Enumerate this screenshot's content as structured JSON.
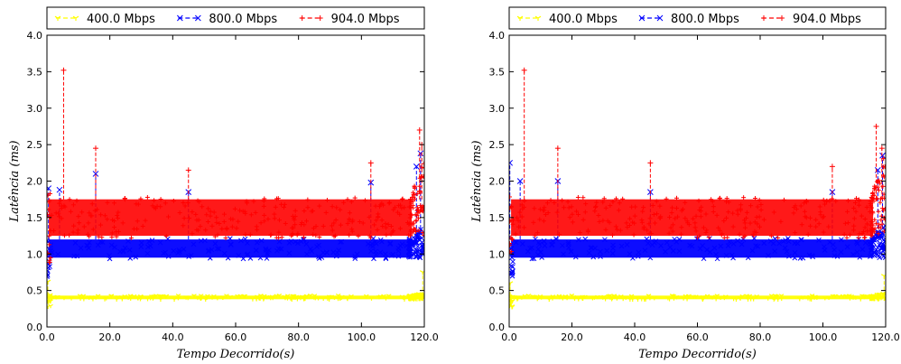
{
  "chart_data": [
    {
      "type": "scatter",
      "xlabel": "Tempo Decorrido(s)",
      "ylabel": "Latência (ms)",
      "xlim": [
        0,
        120
      ],
      "ylim": [
        0,
        4.0
      ],
      "x_ticks": [
        "0.0",
        "20.0",
        "40.0",
        "60.0",
        "80.0",
        "100.0",
        "120.0"
      ],
      "y_ticks": [
        "0.0",
        "0.5",
        "1.0",
        "1.5",
        "2.0",
        "2.5",
        "3.0",
        "3.5",
        "4.0"
      ],
      "legend_position": "top",
      "series": [
        {
          "name": "400.0 Mbps",
          "color": "#ffff00",
          "marker": "y-tick",
          "band": [
            0.38,
            0.43
          ],
          "spikes": [
            [
              0.3,
              0.62
            ],
            [
              119.5,
              0.75
            ]
          ]
        },
        {
          "name": "800.0 Mbps",
          "color": "#0000ff",
          "marker": "x",
          "band": [
            0.95,
            1.2
          ],
          "spikes": [
            [
              0.5,
              1.9
            ],
            [
              4.0,
              1.88
            ],
            [
              15.5,
              2.1
            ],
            [
              45.0,
              1.85
            ],
            [
              103.0,
              1.98
            ],
            [
              117.5,
              2.2
            ],
            [
              118.8,
              2.38
            ]
          ]
        },
        {
          "name": "904.0 Mbps",
          "color": "#ff0000",
          "marker": "plus",
          "band": [
            1.25,
            1.75
          ],
          "spikes": [
            [
              5.3,
              3.52
            ],
            [
              15.5,
              2.45
            ],
            [
              45.0,
              2.15
            ],
            [
              103.0,
              2.25
            ],
            [
              118.5,
              2.7
            ],
            [
              119.2,
              2.5
            ]
          ]
        }
      ]
    },
    {
      "type": "scatter",
      "xlabel": "Tempo Decorrido(s)",
      "ylabel": "Latência (ms)",
      "xlim": [
        0,
        120
      ],
      "ylim": [
        0,
        4.0
      ],
      "x_ticks": [
        "0.0",
        "20.0",
        "40.0",
        "60.0",
        "80.0",
        "100.0",
        "120.0"
      ],
      "y_ticks": [
        "0.0",
        "0.5",
        "1.0",
        "1.5",
        "2.0",
        "2.5",
        "3.0",
        "3.5",
        "4.0"
      ],
      "legend_position": "top",
      "series": [
        {
          "name": "400.0 Mbps",
          "color": "#ffff00",
          "marker": "y-tick",
          "band": [
            0.38,
            0.43
          ],
          "spikes": [
            [
              0.3,
              0.6
            ],
            [
              119.5,
              0.7
            ]
          ]
        },
        {
          "name": "800.0 Mbps",
          "color": "#0000ff",
          "marker": "x",
          "band": [
            0.95,
            1.2
          ],
          "spikes": [
            [
              0.2,
              2.25
            ],
            [
              3.5,
              2.0
            ],
            [
              15.5,
              2.0
            ],
            [
              45.0,
              1.85
            ],
            [
              103.0,
              1.85
            ],
            [
              117.5,
              2.15
            ],
            [
              119.0,
              2.35
            ]
          ]
        },
        {
          "name": "904.0 Mbps",
          "color": "#ff0000",
          "marker": "plus",
          "band": [
            1.25,
            1.75
          ],
          "spikes": [
            [
              4.8,
              3.52
            ],
            [
              15.5,
              2.45
            ],
            [
              45.0,
              2.25
            ],
            [
              103.0,
              2.2
            ],
            [
              117.0,
              2.75
            ],
            [
              118.8,
              2.45
            ]
          ]
        }
      ]
    }
  ]
}
